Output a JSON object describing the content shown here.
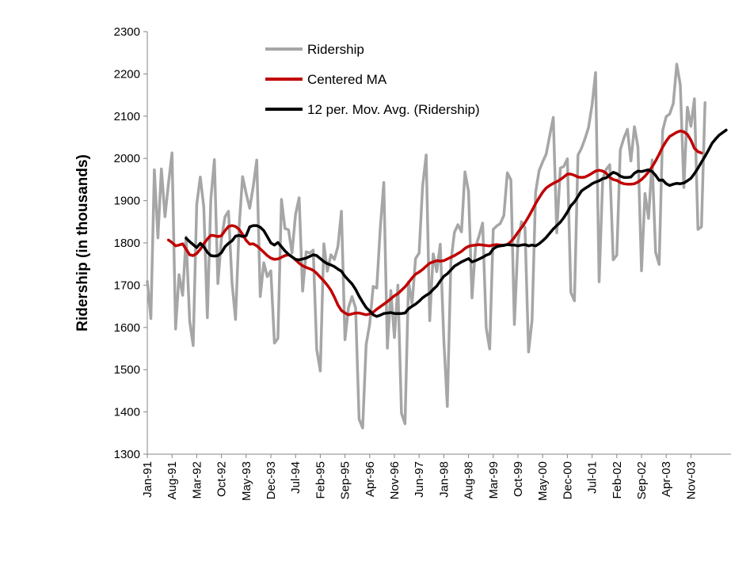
{
  "chart_data": {
    "type": "line",
    "ylabel": "Ridership (in thousands)",
    "ylim": [
      1300,
      2300
    ],
    "yticks": [
      "1300",
      "1400",
      "1500",
      "1600",
      "1700",
      "1800",
      "1900",
      "2000",
      "2100",
      "2200",
      "2300"
    ],
    "xticks": [
      "Jan-91",
      "Aug-91",
      "Mar-92",
      "Oct-92",
      "May-93",
      "Dec-93",
      "Jul-94",
      "Feb-95",
      "Sep-95",
      "Apr-96",
      "Nov-96",
      "Jun-97",
      "Jan-98",
      "Aug-98",
      "Mar-99",
      "Oct-99",
      "May-00",
      "Dec-00",
      "Jul-01",
      "Feb-02",
      "Sep-02",
      "Apr-03",
      "Nov-03"
    ],
    "x_start": "Jan-91",
    "grid": false,
    "legend_position": "top-left",
    "colors": {
      "ridership": "#a6a6a6",
      "centered": "#c00000",
      "trailing": "#000000"
    },
    "series": [
      {
        "name": "Ridership",
        "start_index": 0,
        "values": [
          1709,
          1621,
          1973,
          1812,
          1975,
          1862,
          1940,
          2013,
          1596,
          1725,
          1676,
          1814,
          1615,
          1557,
          1891,
          1956,
          1885,
          1623,
          1903,
          1997,
          1704,
          1810,
          1862,
          1875,
          1705,
          1619,
          1837,
          1957,
          1917,
          1882,
          1933,
          1996,
          1673,
          1753,
          1720,
          1734,
          1563,
          1574,
          1903,
          1834,
          1831,
          1776,
          1868,
          1907,
          1686,
          1779,
          1776,
          1783,
          1548,
          1497,
          1798,
          1733,
          1772,
          1761,
          1792,
          1875,
          1571,
          1647,
          1673,
          1646,
          1383,
          1362,
          1559,
          1608,
          1697,
          1693,
          1836,
          1943,
          1551,
          1687,
          1576,
          1700,
          1397,
          1372,
          1708,
          1655,
          1763,
          1776,
          1934,
          2008,
          1616,
          1774,
          1732,
          1797,
          1570,
          1413,
          1755,
          1825,
          1843,
          1826,
          1968,
          1922,
          1670,
          1791,
          1817,
          1847,
          1599,
          1549,
          1832,
          1840,
          1846,
          1865,
          1966,
          1949,
          1607,
          1804,
          1850,
          1836,
          1542,
          1617,
          1920,
          1971,
          1992,
          2010,
          2054,
          2097,
          1824,
          1977,
          1981,
          1999,
          1683,
          1663,
          2008,
          2024,
          2047,
          2073,
          2127,
          2203,
          1708,
          1951,
          1974,
          1985,
          1760,
          1771,
          2020,
          2048,
          2069,
          1994,
          2075,
          2027,
          1734,
          1917,
          1858,
          1996,
          1778,
          1749,
          2066,
          2099,
          2105,
          2130,
          2223,
          2174,
          1931,
          2121,
          2076,
          2141,
          1832,
          1838,
          2132
        ]
      },
      {
        "name": "Centered MA",
        "start_index": 6,
        "values": [
          1807,
          1801,
          1793,
          1795,
          1798,
          1785,
          1772,
          1770,
          1775,
          1785,
          1798,
          1809,
          1818,
          1817,
          1815,
          1817,
          1829,
          1839,
          1841,
          1839,
          1832,
          1820,
          1806,
          1797,
          1798,
          1793,
          1786,
          1778,
          1770,
          1764,
          1761,
          1762,
          1766,
          1770,
          1772,
          1767,
          1760,
          1752,
          1746,
          1742,
          1739,
          1735,
          1728,
          1719,
          1710,
          1700,
          1688,
          1672,
          1653,
          1640,
          1634,
          1630,
          1632,
          1634,
          1634,
          1632,
          1630,
          1632,
          1636,
          1643,
          1649,
          1655,
          1661,
          1668,
          1675,
          1680,
          1688,
          1696,
          1706,
          1717,
          1726,
          1731,
          1737,
          1745,
          1752,
          1755,
          1758,
          1757,
          1758,
          1762,
          1766,
          1770,
          1775,
          1780,
          1787,
          1792,
          1794,
          1795,
          1796,
          1795,
          1794,
          1793,
          1795,
          1796,
          1795,
          1795,
          1796,
          1803,
          1813,
          1825,
          1836,
          1848,
          1862,
          1877,
          1893,
          1907,
          1920,
          1930,
          1936,
          1941,
          1945,
          1950,
          1956,
          1963,
          1963,
          1960,
          1956,
          1955,
          1956,
          1960,
          1965,
          1970,
          1972,
          1970,
          1965,
          1955,
          1950,
          1948,
          1943,
          1940,
          1939,
          1939,
          1940,
          1944,
          1950,
          1958,
          1968,
          1980,
          1994,
          2010,
          2027,
          2041,
          2052,
          2057,
          2062,
          2065,
          2063,
          2057,
          2043,
          2024,
          2016,
          2013
        ]
      },
      {
        "name": "12 per. Mov. Avg. (Ridership)",
        "start_index": 11,
        "values": [
          1811,
          1803,
          1796,
          1789,
          1799,
          1791,
          1778,
          1770,
          1769,
          1770,
          1777,
          1791,
          1799,
          1805,
          1816,
          1818,
          1815,
          1817,
          1838,
          1841,
          1841,
          1837,
          1829,
          1815,
          1800,
          1795,
          1801,
          1791,
          1781,
          1773,
          1767,
          1761,
          1760,
          1762,
          1764,
          1768,
          1772,
          1770,
          1763,
          1756,
          1751,
          1748,
          1744,
          1738,
          1733,
          1721,
          1712,
          1703,
          1690,
          1674,
          1660,
          1647,
          1639,
          1630,
          1626,
          1629,
          1633,
          1634,
          1635,
          1633,
          1633,
          1633,
          1634,
          1644,
          1650,
          1655,
          1662,
          1670,
          1676,
          1681,
          1690,
          1698,
          1710,
          1721,
          1727,
          1736,
          1745,
          1750,
          1755,
          1759,
          1763,
          1755,
          1758,
          1762,
          1766,
          1771,
          1774,
          1786,
          1791,
          1793,
          1794,
          1796,
          1795,
          1795,
          1793,
          1795,
          1796,
          1793,
          1795,
          1793,
          1798,
          1805,
          1813,
          1823,
          1833,
          1841,
          1849,
          1860,
          1873,
          1888,
          1897,
          1910,
          1923,
          1929,
          1934,
          1940,
          1944,
          1947,
          1952,
          1954,
          1961,
          1967,
          1964,
          1958,
          1955,
          1955,
          1956,
          1965,
          1970,
          1969,
          1971,
          1973,
          1969,
          1960,
          1948,
          1949,
          1940,
          1936,
          1939,
          1941,
          1940,
          1942,
          1947,
          1953,
          1964,
          1977,
          1991,
          2005,
          2020,
          2036,
          2046,
          2055,
          2061,
          2067
        ]
      }
    ]
  }
}
